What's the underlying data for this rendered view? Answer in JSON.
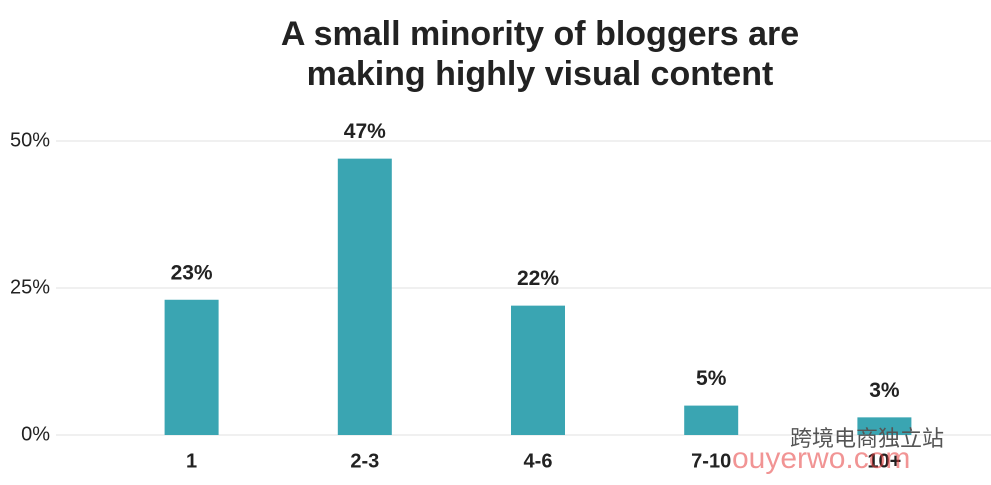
{
  "chart_data": {
    "type": "bar",
    "title": [
      "A small minority of bloggers are",
      "making highly visual content"
    ],
    "categories": [
      "1",
      "2-3",
      "4-6",
      "7-10",
      "10+"
    ],
    "values": [
      23,
      47,
      22,
      5,
      3
    ],
    "value_labels": [
      "23%",
      "47%",
      "22%",
      "5%",
      "3%"
    ],
    "color": "#3aa5b2",
    "ylim": [
      0,
      50
    ],
    "yticks": [
      {
        "value": 0,
        "label": "0%"
      },
      {
        "value": 25,
        "label": "25%"
      },
      {
        "value": 50,
        "label": "50%"
      }
    ],
    "grid": true,
    "watermark": [
      "跨境电商独立站",
      "ouyerwo.com"
    ]
  }
}
